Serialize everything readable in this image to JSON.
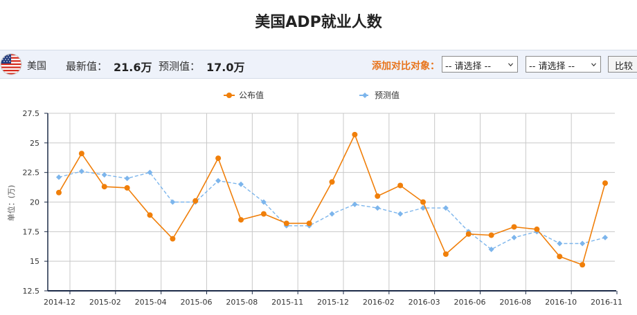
{
  "page": {
    "title": "美国ADP就业人数"
  },
  "infobar": {
    "country": "美国",
    "latest_label": "最新值：",
    "latest_value": "21.6万",
    "forecast_label": "预测值：",
    "forecast_value": "17.0万",
    "add_compare_label": "添加对比对象：",
    "select1_value": "-- 请选择 --",
    "select2_value": "-- 请选择 --",
    "compare_button_label": "比较"
  },
  "colors": {
    "published": "#f07f0a",
    "forecast": "#7cb5ec",
    "axis": "#1b2a47",
    "grid": "#c8c8c8"
  },
  "chart_data": {
    "type": "line",
    "title": "",
    "xlabel": "",
    "ylabel": "单位：(万)",
    "ylim": [
      12.5,
      27.5
    ],
    "yticks": [
      12.5,
      15,
      17.5,
      20,
      22.5,
      25,
      27.5
    ],
    "grid": true,
    "legend_position": "top-center",
    "x_tick_labels": [
      "2014-12",
      "2015-02",
      "2015-04",
      "2015-06",
      "2015-08",
      "2015-11",
      "2015-12",
      "2016-02",
      "2016-03",
      "2016-06",
      "2016-08",
      "2016-10",
      "2016-11"
    ],
    "series": [
      {
        "name": "公布值",
        "color": "#f07f0a",
        "marker": "circle",
        "dash": "solid",
        "values": [
          20.8,
          24.1,
          21.3,
          21.2,
          18.9,
          16.9,
          20.1,
          23.7,
          18.5,
          19.0,
          18.2,
          18.2,
          21.7,
          25.7,
          20.5,
          21.4,
          20.0,
          15.6,
          17.3,
          17.2,
          17.9,
          17.7,
          15.4,
          14.7,
          21.6
        ]
      },
      {
        "name": "预测值",
        "color": "#7cb5ec",
        "marker": "diamond",
        "dash": "dashed",
        "values": [
          22.1,
          22.6,
          22.3,
          22.0,
          22.5,
          20.0,
          20.0,
          21.8,
          21.5,
          20.0,
          18.0,
          18.0,
          19.0,
          19.8,
          19.5,
          19.0,
          19.5,
          19.5,
          17.5,
          16.0,
          17.0,
          17.5,
          16.5,
          16.5,
          17.0
        ]
      }
    ]
  }
}
